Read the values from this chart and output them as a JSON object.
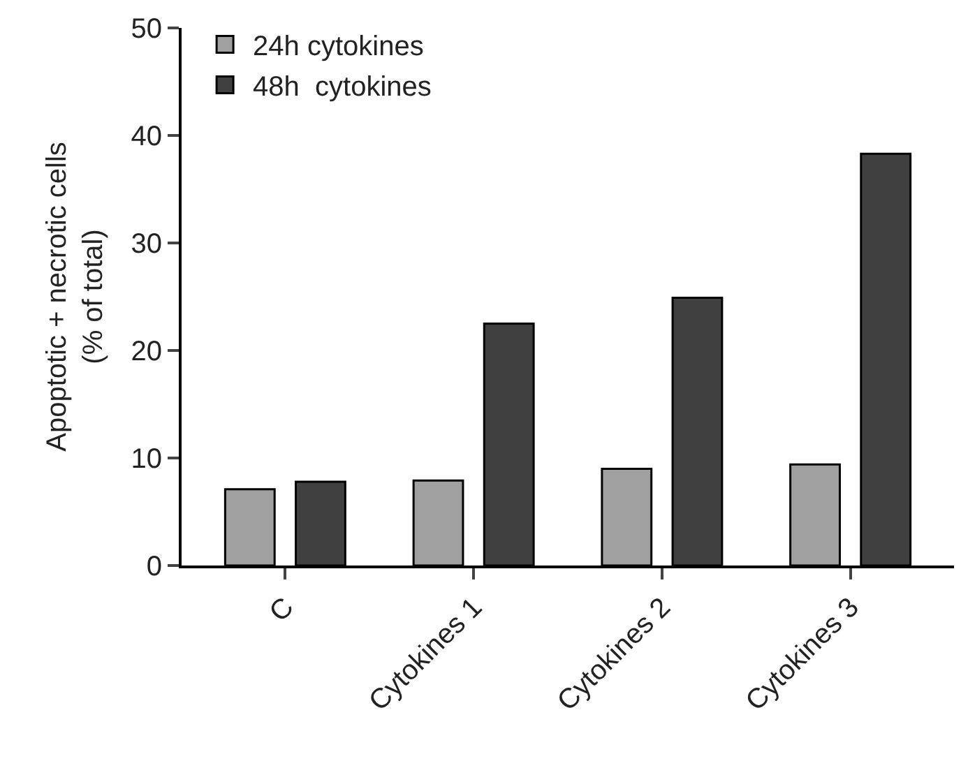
{
  "chart_data": {
    "type": "bar",
    "ylabel": "Apoptotic + necrotic cells\n(% of total)",
    "categories": [
      "C",
      "Cytokines 1",
      "Cytokines 2",
      "Cytokines 3"
    ],
    "series": [
      {
        "name": "24h cytokines",
        "color": "#a0a0a0",
        "values": [
          7.1,
          7.9,
          9.0,
          9.4
        ]
      },
      {
        "name": "48h  cytokines",
        "color": "#404040",
        "values": [
          7.8,
          22.5,
          24.9,
          38.3
        ]
      }
    ],
    "ylim": [
      0,
      50
    ],
    "yticks": [
      0,
      10,
      20,
      30,
      40,
      50
    ],
    "legend": "top left"
  }
}
